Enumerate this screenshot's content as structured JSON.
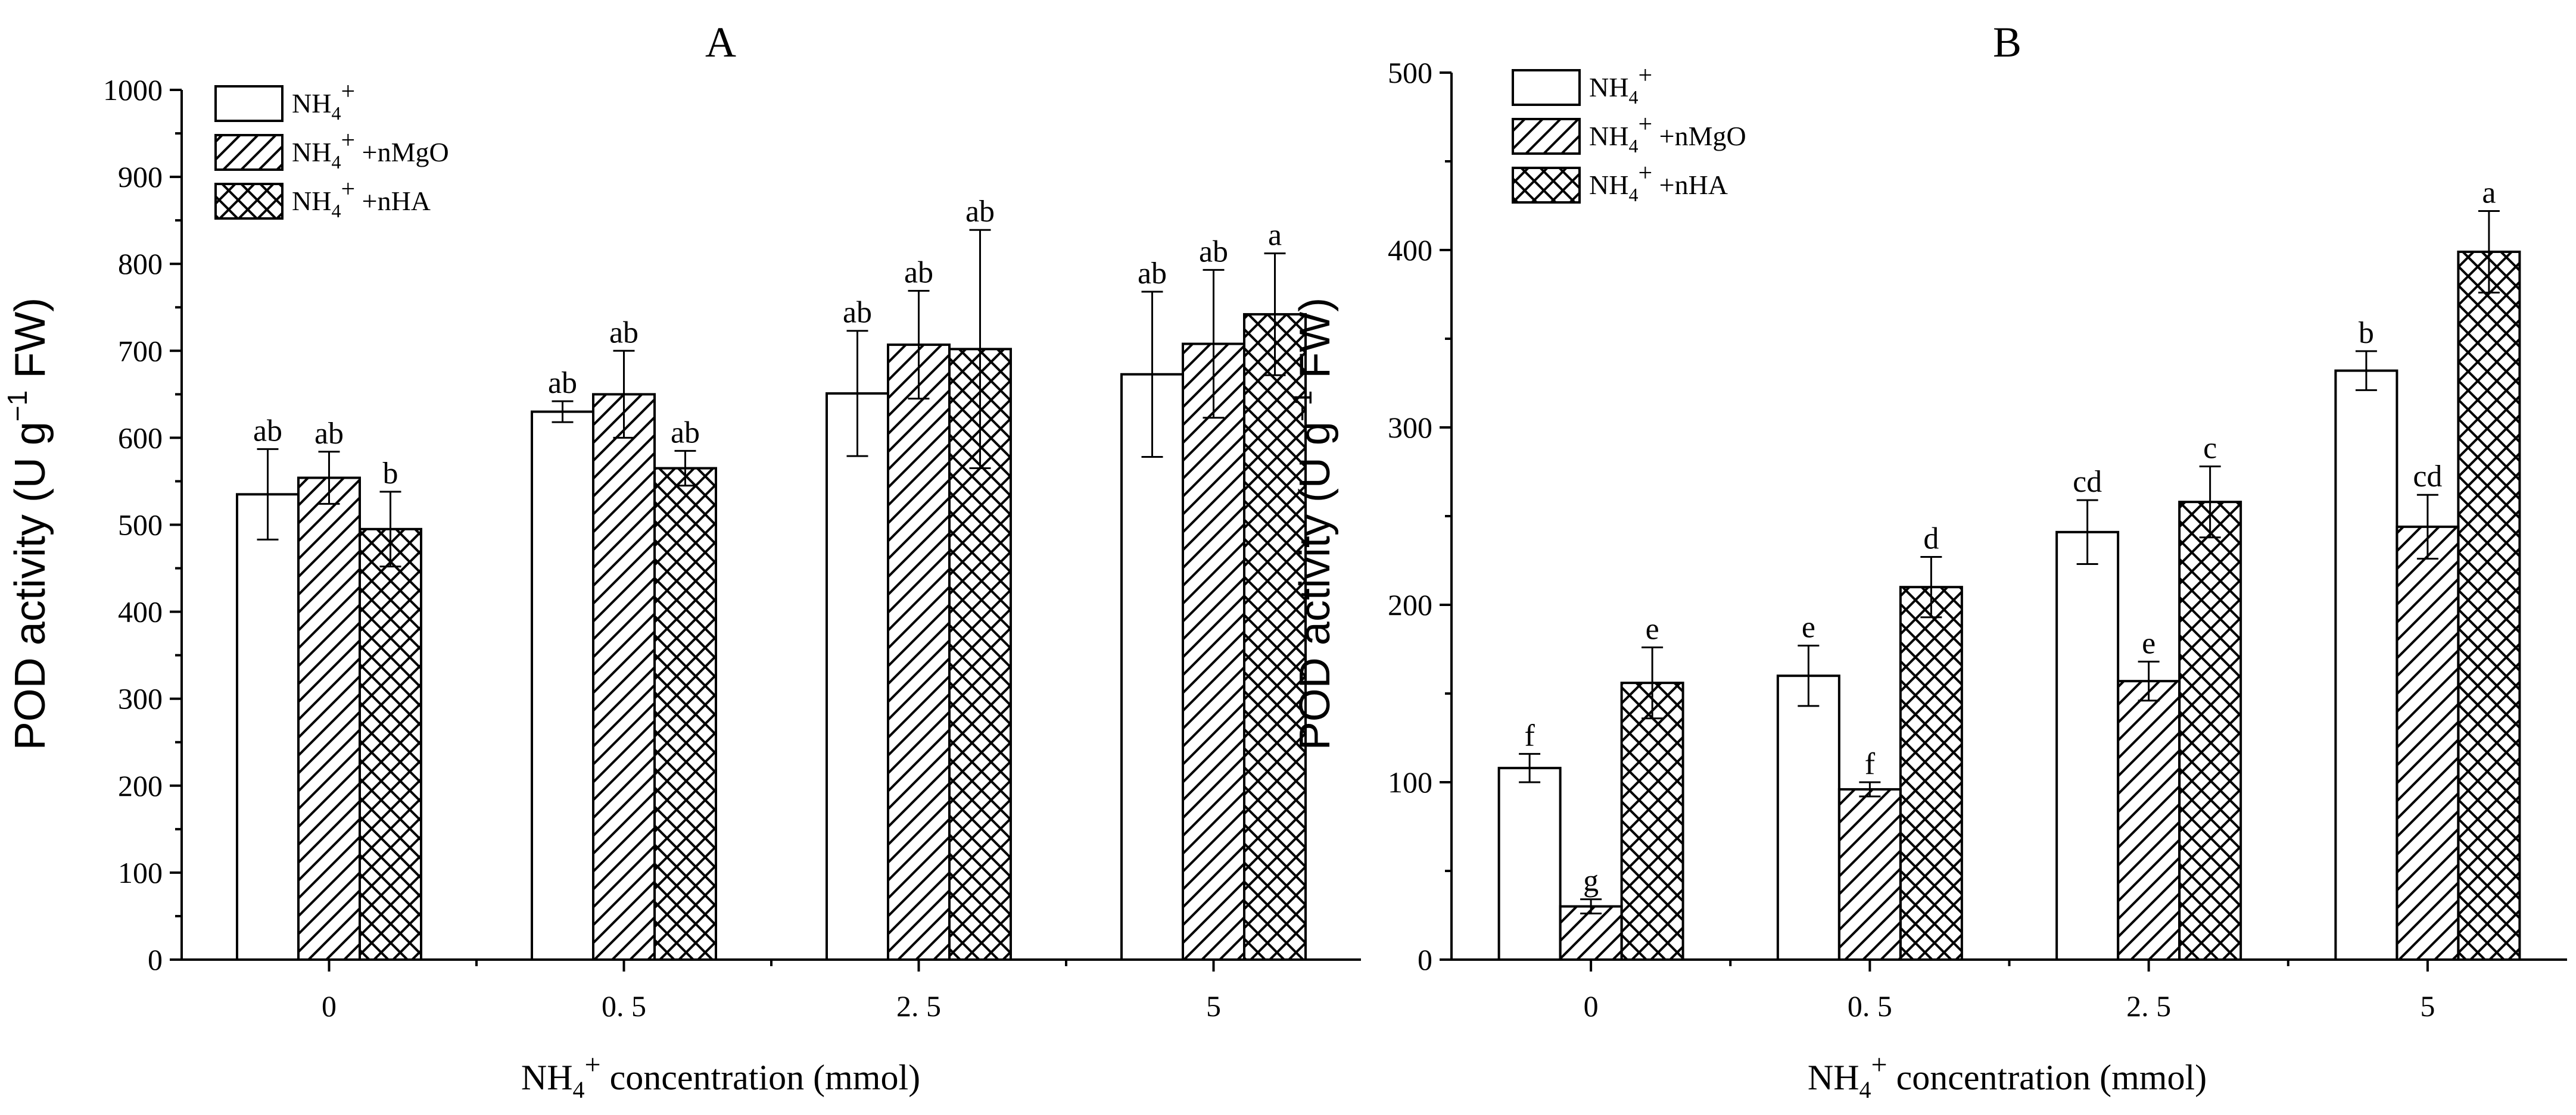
{
  "chart_data": [
    {
      "type": "bar",
      "panel": "A",
      "title": "A",
      "ylabel": "POD activity (U g-1 FW)",
      "ylabel_parts": {
        "main": "POD activity (U g",
        "sup": "−1",
        "tail": " FW)"
      },
      "xlabel": "NH4+ concentration (mmol)",
      "xlabel_parts": {
        "main": "NH",
        "sub": "4",
        "sup": "+",
        "tail": " concentration (mmol)"
      },
      "categories": [
        "0",
        "0. 5",
        "2. 5",
        "5"
      ],
      "ylim": [
        0,
        1000
      ],
      "yticks": [
        0,
        100,
        200,
        300,
        400,
        500,
        600,
        700,
        800,
        900,
        1000
      ],
      "legend_position": "top-left",
      "series": [
        {
          "name": "NH4+",
          "pattern": "open",
          "values": [
            535,
            630,
            651,
            673
          ],
          "errors": [
            52,
            12,
            72,
            95
          ],
          "labels": [
            "ab",
            "ab",
            "ab",
            "ab"
          ]
        },
        {
          "name": "NH4+ +nMgO",
          "pattern": "hatch",
          "values": [
            554,
            650,
            707,
            708
          ],
          "errors": [
            30,
            50,
            62,
            85
          ],
          "labels": [
            "ab",
            "ab",
            "ab",
            "ab"
          ]
        },
        {
          "name": "NH4+ +nHA",
          "pattern": "cross",
          "values": [
            495,
            565,
            702,
            742
          ],
          "errors": [
            43,
            20,
            137,
            70
          ],
          "labels": [
            "b",
            "ab",
            "ab",
            "a"
          ]
        }
      ]
    },
    {
      "type": "bar",
      "panel": "B",
      "title": "B",
      "ylabel": "POD activity (U g-1 FW)",
      "ylabel_parts": {
        "main": "POD activity (U g",
        "sup": "−1",
        "tail": " FW)"
      },
      "xlabel": "NH4+ concentration (mmol)",
      "xlabel_parts": {
        "main": "NH",
        "sub": "4",
        "sup": "+",
        "tail": " concentration (mmol)"
      },
      "categories": [
        "0",
        "0. 5",
        "2. 5",
        "5"
      ],
      "ylim": [
        0,
        500
      ],
      "yticks": [
        0,
        100,
        200,
        300,
        400,
        500
      ],
      "legend_position": "top-left",
      "series": [
        {
          "name": "NH4+",
          "pattern": "open",
          "values": [
            108,
            160,
            241,
            332
          ],
          "errors": [
            8,
            17,
            18,
            11
          ],
          "labels": [
            "f",
            "e",
            "cd",
            "b"
          ]
        },
        {
          "name": "NH4+ +nMgO",
          "pattern": "hatch",
          "values": [
            30,
            96,
            157,
            244
          ],
          "errors": [
            4,
            4,
            11,
            18
          ],
          "labels": [
            "g",
            "f",
            "e",
            "cd"
          ]
        },
        {
          "name": "NH4+ +nHA",
          "pattern": "cross",
          "values": [
            156,
            210,
            258,
            399
          ],
          "errors": [
            20,
            17,
            20,
            23
          ],
          "labels": [
            "e",
            "d",
            "c",
            "a"
          ]
        }
      ]
    }
  ]
}
